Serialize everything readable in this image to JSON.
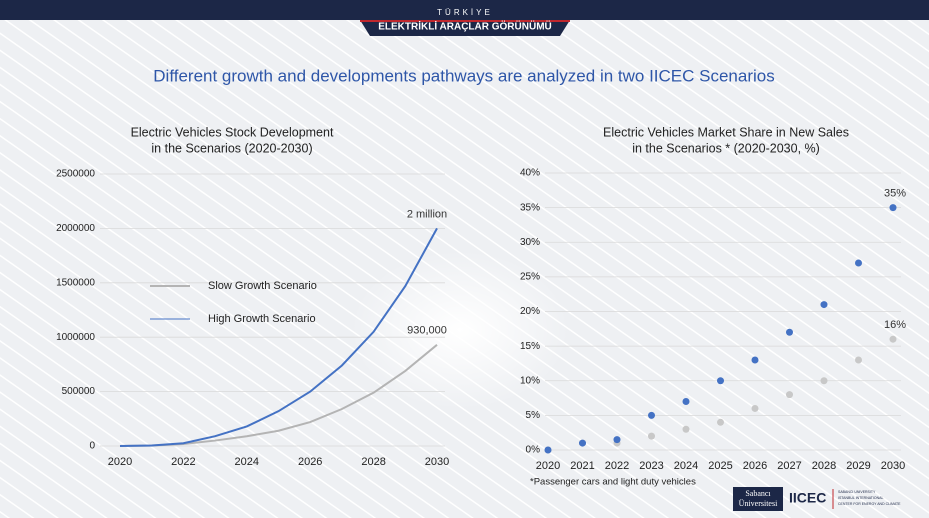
{
  "header": {
    "country": "TÜRKİYE",
    "title": "ELEKTRİKLİ ARAÇLAR GÖRÜNÜMÜ"
  },
  "headline": "Different growth and developments pathways are analyzed in two IICEC Scenarios",
  "chart_data": [
    {
      "type": "line",
      "title": [
        "Electric Vehicles Stock Development",
        "in the Scenarios (2020-2030)"
      ],
      "x": [
        2020,
        2021,
        2022,
        2023,
        2024,
        2025,
        2026,
        2027,
        2028,
        2029,
        2030
      ],
      "xlim": [
        2020,
        2030
      ],
      "xticks": [
        2020,
        2022,
        2024,
        2026,
        2028,
        2030
      ],
      "ylim": [
        0,
        2500000
      ],
      "yticks": [
        0,
        500000,
        1000000,
        1500000,
        2000000,
        2500000
      ],
      "grid": true,
      "series": [
        {
          "name": "Slow Growth Scenario",
          "color": "#b4b4b4",
          "values": [
            0,
            4000,
            18000,
            50000,
            90000,
            140000,
            220000,
            340000,
            490000,
            690000,
            930000
          ],
          "value_labels": [
            null,
            null,
            null,
            null,
            null,
            null,
            null,
            null,
            null,
            null,
            "930,000"
          ]
        },
        {
          "name": "High Growth Scenario",
          "color": "#4472c4",
          "values": [
            0,
            5000,
            25000,
            90000,
            180000,
            320000,
            500000,
            740000,
            1050000,
            1470000,
            2000000
          ],
          "value_labels": [
            null,
            null,
            null,
            null,
            null,
            null,
            null,
            null,
            null,
            null,
            "2 million"
          ]
        }
      ]
    },
    {
      "type": "scatter",
      "title": [
        "Electric Vehicles Market Share in New Sales",
        "in the Scenarios *  (2020-2030, %)"
      ],
      "x": [
        2020,
        2021,
        2022,
        2023,
        2024,
        2025,
        2026,
        2027,
        2028,
        2029,
        2030
      ],
      "xlim": [
        2020,
        2030
      ],
      "xticks": [
        2020,
        2021,
        2022,
        2023,
        2024,
        2025,
        2026,
        2027,
        2028,
        2029,
        2030
      ],
      "ylim": [
        0,
        40
      ],
      "yticks": [
        {
          "value": 0,
          "label": "0%"
        },
        {
          "value": 5,
          "label": "5%"
        },
        {
          "value": 10,
          "label": "10%"
        },
        {
          "value": 15,
          "label": "15%"
        },
        {
          "value": 20,
          "label": "20%"
        },
        {
          "value": 25,
          "label": "25%"
        },
        {
          "value": 30,
          "label": "30%"
        },
        {
          "value": 35,
          "label": "35%"
        },
        {
          "value": 40,
          "label": "40%"
        }
      ],
      "grid": true,
      "series": [
        {
          "color": "#c8c8c8",
          "values": [
            0,
            1,
            1,
            2,
            3,
            4,
            6,
            8,
            10,
            13,
            16
          ],
          "value_labels": [
            null,
            null,
            null,
            null,
            null,
            null,
            null,
            null,
            null,
            null,
            "16%"
          ]
        },
        {
          "color": "#4472c4",
          "values": [
            0,
            1,
            1.5,
            5,
            7,
            10,
            13,
            17,
            21,
            27,
            35
          ],
          "value_labels": [
            null,
            null,
            null,
            null,
            null,
            null,
            null,
            null,
            null,
            null,
            "35%"
          ]
        }
      ]
    }
  ],
  "footnote": "*Passenger cars and light duty vehicles",
  "logos": {
    "university": [
      "Sabancı",
      "Üniversitesi"
    ],
    "center": "IICEC",
    "center_full": [
      "SABANCI UNIVERSITY",
      "ISTANBUL INTERNATIONAL",
      "CENTER FOR ENERGY AND CLIMATE"
    ]
  }
}
